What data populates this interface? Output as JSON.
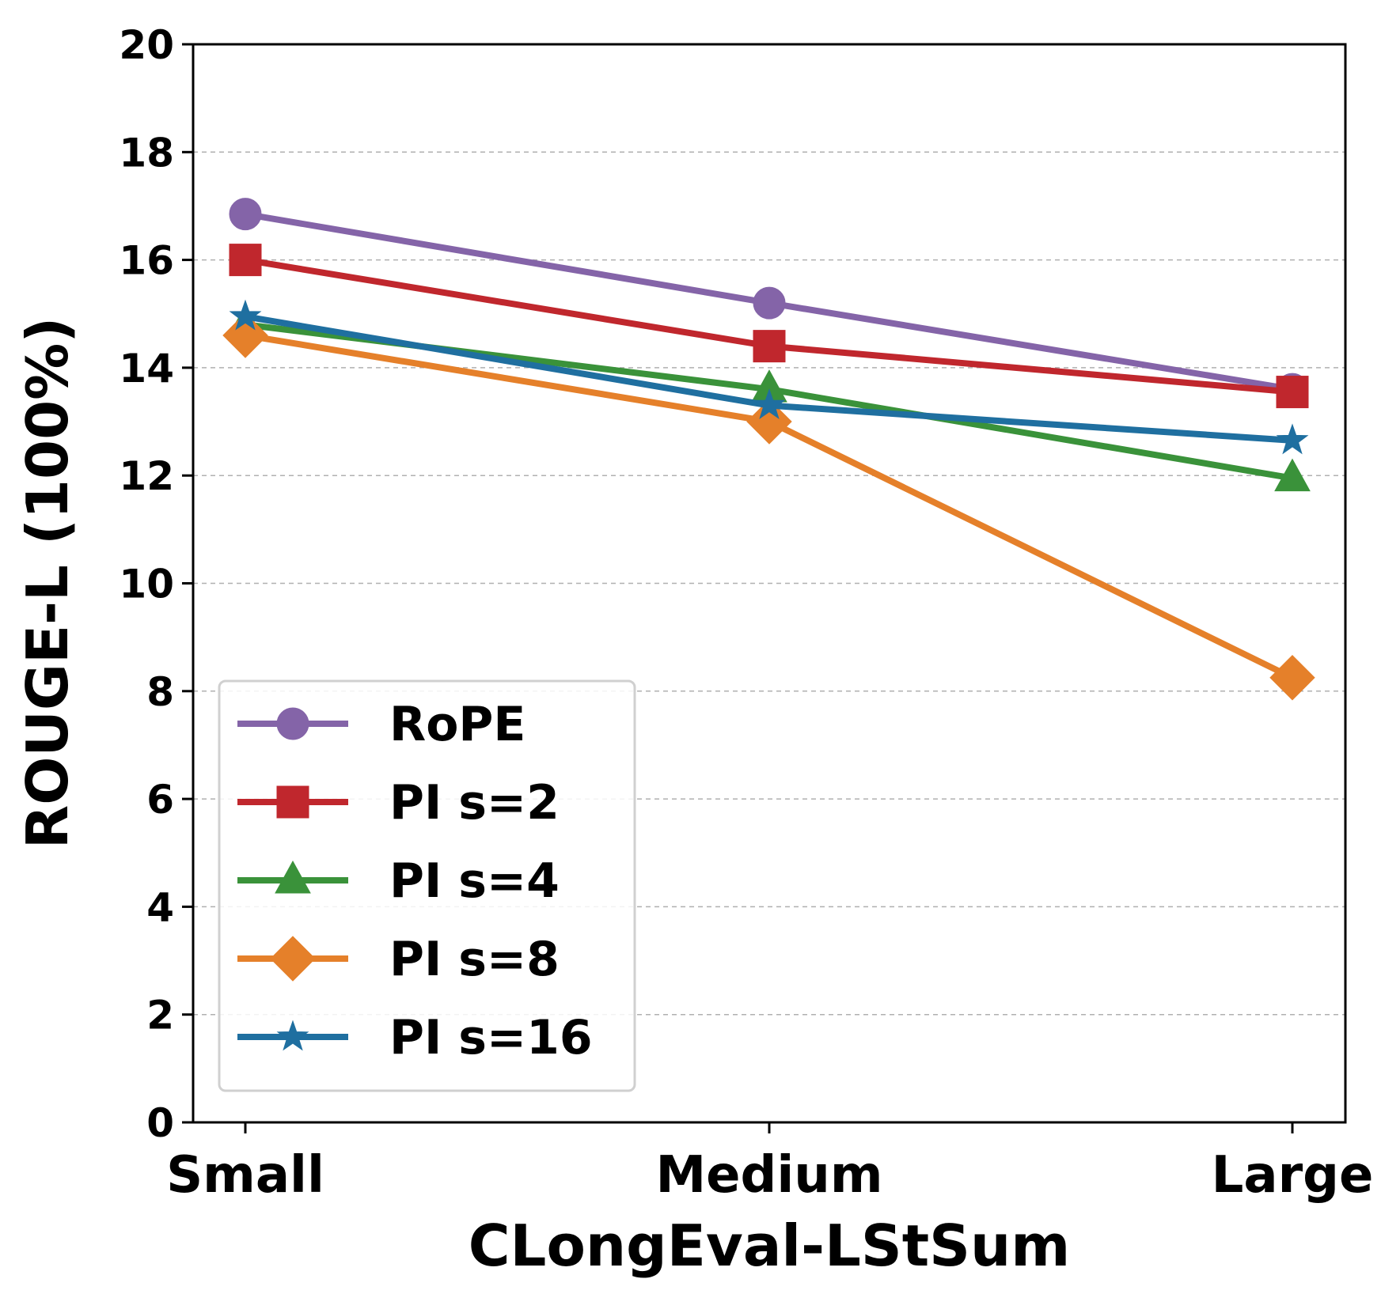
{
  "chart_data": {
    "type": "line",
    "title": "",
    "xlabel": "CLongEval-LStSum",
    "ylabel": "ROUGE-L (100%)",
    "categories": [
      "Small",
      "Medium",
      "Large"
    ],
    "ylim": [
      0,
      20
    ],
    "yticks": [
      "0",
      "2",
      "4",
      "6",
      "8",
      "10",
      "12",
      "14",
      "16",
      "18",
      "20"
    ],
    "grid": "horizontal dashed",
    "legend_position": "lower-left",
    "series": [
      {
        "name": "RoPE",
        "values": [
          16.85,
          15.2,
          13.6
        ],
        "color": "#8464a8",
        "marker": "circle"
      },
      {
        "name": "PI s=2",
        "values": [
          16.0,
          14.4,
          13.55
        ],
        "color": "#c0272d",
        "marker": "square"
      },
      {
        "name": "PI s=4",
        "values": [
          14.8,
          13.6,
          11.95
        ],
        "color": "#3a923a",
        "marker": "triangle"
      },
      {
        "name": "PI s=8",
        "values": [
          14.6,
          13.0,
          8.25
        ],
        "color": "#e5802a",
        "marker": "diamond"
      },
      {
        "name": "PI s=16",
        "values": [
          14.95,
          13.3,
          12.65
        ],
        "color": "#1f6fa0",
        "marker": "star"
      }
    ]
  }
}
